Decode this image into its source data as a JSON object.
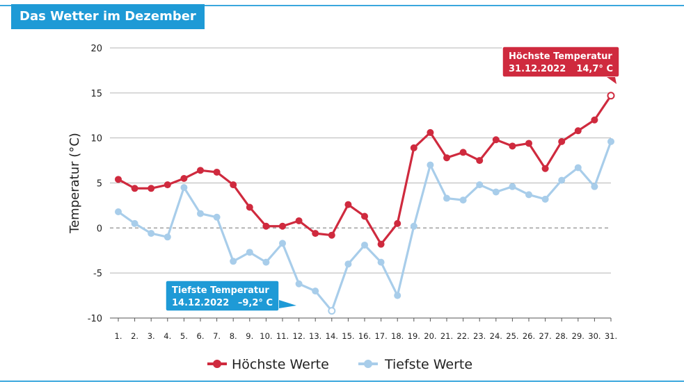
{
  "header": {
    "title": "Das Wetter im Dezember"
  },
  "colors": {
    "high": "#cf2a3e",
    "low": "#a8cdea",
    "accent": "#1e9ad6",
    "grid": "#b5b5b5"
  },
  "chart_data": {
    "type": "line",
    "title": "Das Wetter im Dezember",
    "ylabel": "Temperatur (°C)",
    "xlabel": "",
    "ylim": [
      -10,
      20
    ],
    "yticks": [
      20,
      15,
      10,
      5,
      0,
      -5,
      -10
    ],
    "ytick_labels": [
      "20",
      "15",
      "10",
      "5",
      "0",
      "-5",
      "-10"
    ],
    "grid": true,
    "legend_position": "bottom-center",
    "categories": [
      "1.",
      "2.",
      "3.",
      "4.",
      "5.",
      "6.",
      "7.",
      "8.",
      "9.",
      "10.",
      "11.",
      "12.",
      "13.",
      "14.",
      "15.",
      "16.",
      "17.",
      "18.",
      "19.",
      "20.",
      "21.",
      "22.",
      "23.",
      "24.",
      "25.",
      "26.",
      "27.",
      "28.",
      "29.",
      "30.",
      "31."
    ],
    "series": [
      {
        "name": "Höchste Werte",
        "key": "high",
        "values": [
          5.4,
          4.4,
          4.4,
          4.8,
          5.5,
          6.4,
          6.2,
          4.8,
          2.3,
          0.2,
          0.2,
          0.8,
          -0.6,
          -0.8,
          2.6,
          1.3,
          -1.8,
          0.5,
          8.9,
          10.6,
          7.8,
          8.4,
          7.5,
          9.8,
          9.1,
          9.4,
          6.6,
          9.6,
          10.8,
          12.0,
          14.7
        ]
      },
      {
        "name": "Tiefste Werte",
        "key": "low",
        "values": [
          1.8,
          0.5,
          -0.6,
          -1.0,
          4.5,
          1.6,
          1.2,
          -3.7,
          -2.7,
          -3.8,
          -1.7,
          -6.2,
          -7.0,
          -9.2,
          -4.0,
          -1.9,
          -3.8,
          -7.5,
          0.2,
          7.0,
          3.3,
          3.1,
          4.8,
          4.0,
          4.6,
          3.7,
          3.2,
          5.3,
          6.7,
          4.6,
          9.6
        ]
      }
    ],
    "annotations": [
      {
        "series": "high",
        "index": 30,
        "title": "Höchste Temperatur",
        "date": "31.12.2022",
        "value": "14,7° C"
      },
      {
        "series": "low",
        "index": 13,
        "title": "Tiefste Temperatur",
        "date": "14.12.2022",
        "value": "–9,2° C"
      }
    ]
  }
}
